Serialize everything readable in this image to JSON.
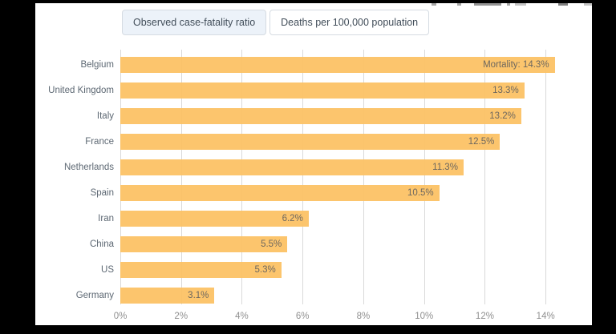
{
  "toolbar": {
    "toggles": [
      {
        "label": "Observed case-fatality ratio",
        "selected": true
      },
      {
        "label": "Deaths per 100,000 population",
        "selected": false
      }
    ]
  },
  "chart_data": {
    "type": "bar",
    "orientation": "horizontal",
    "title": "",
    "xlabel": "",
    "ylabel": "",
    "categories": [
      "Belgium",
      "United Kingdom",
      "Italy",
      "France",
      "Netherlands",
      "Spain",
      "Iran",
      "China",
      "US",
      "Germany"
    ],
    "values": [
      14.3,
      13.3,
      13.2,
      12.5,
      11.3,
      10.5,
      6.2,
      5.5,
      5.3,
      3.1
    ],
    "bar_labels": [
      "Mortality: 14.3%",
      "13.3%",
      "13.2%",
      "12.5%",
      "11.3%",
      "10.5%",
      "6.2%",
      "5.5%",
      "5.3%",
      "3.1%"
    ],
    "x_ticks": [
      "0%",
      "2%",
      "4%",
      "6%",
      "8%",
      "10%",
      "12%",
      "14%"
    ],
    "x_tick_values": [
      0,
      2,
      4,
      6,
      8,
      10,
      12,
      14
    ],
    "xlim": [
      0,
      15.5
    ],
    "grid": true,
    "legend_position": "none",
    "bar_color": "#FCC265",
    "bar_color_rgba": "rgba(252,193,98,0.93)",
    "gridline_color": "#d9d9d9",
    "value_label_color": "#6d675f",
    "category_label_color": "#5d6873",
    "tick_label_color": "#909090"
  }
}
